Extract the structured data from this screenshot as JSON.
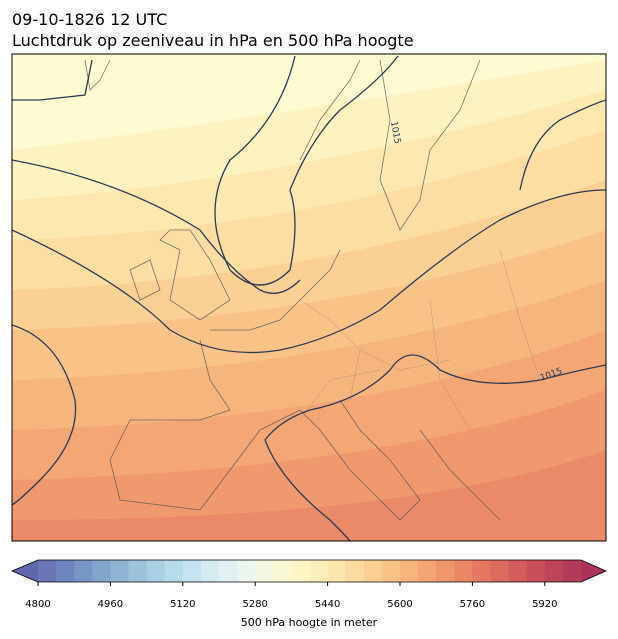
{
  "header": {
    "line1": "09-10-1826 12 UTC",
    "line2": "Luchtdruk op zeeniveau in hPa en 500 hPa hoogte"
  },
  "contour_labels": [
    "1015",
    "1015"
  ],
  "colorbar": {
    "label": "500 hPa hoogte in meter",
    "range": [
      4800,
      6000
    ],
    "ticks": [
      4800,
      4960,
      5120,
      5280,
      5440,
      5600,
      5760,
      5920
    ],
    "under_color": "#5f68ae",
    "over_color": "#a9335a",
    "colors": [
      "#6b75b5",
      "#6f85bd",
      "#7895c4",
      "#82a5cb",
      "#8fb4d3",
      "#9cc3da",
      "#a9d0e2",
      "#b7dbe9",
      "#c6e4ef",
      "#d4ebf2",
      "#e1f1f3",
      "#ecf6ef",
      "#f3f8e2",
      "#f9f8d3",
      "#fdf5c6",
      "#fdefbb",
      "#fde6ae",
      "#fcdba0",
      "#fbcf92",
      "#f9c286",
      "#f7b47c",
      "#f4a573",
      "#f0966c",
      "#eb8766",
      "#e47862",
      "#dc6a5f",
      "#d35c5d",
      "#c94f5b",
      "#be4459",
      "#b33a58"
    ]
  }
}
